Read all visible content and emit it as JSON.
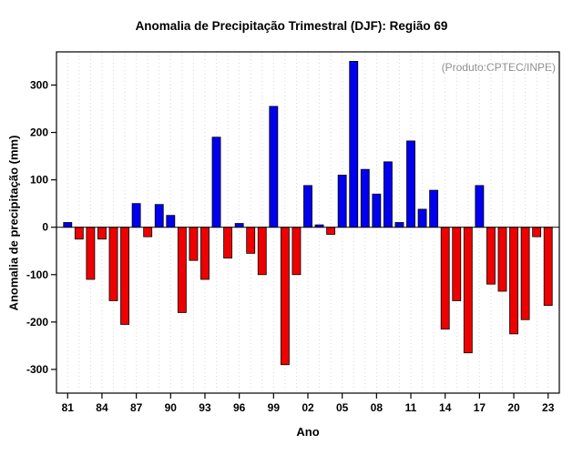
{
  "title": "Anomalia de Precipitação Trimestral (DJF): Região 69",
  "note": "(Produto:CPTEC/INPE)",
  "chart_data": {
    "type": "bar",
    "title": "Anomalia de Precipitação Trimestral (DJF): Região 69",
    "xlabel": "Ano",
    "ylabel": "Anomalia de precipitação (mm)",
    "x": [
      "81",
      "82",
      "83",
      "84",
      "85",
      "86",
      "87",
      "88",
      "89",
      "90",
      "91",
      "92",
      "93",
      "94",
      "95",
      "96",
      "97",
      "98",
      "99",
      "00",
      "01",
      "02",
      "03",
      "04",
      "05",
      "06",
      "07",
      "08",
      "09",
      "10",
      "11",
      "12",
      "13",
      "14",
      "15",
      "16",
      "17",
      "18",
      "19",
      "20",
      "21",
      "22",
      "23"
    ],
    "values": [
      10,
      -25,
      -110,
      -25,
      -155,
      -205,
      50,
      -20,
      48,
      25,
      -180,
      -70,
      -110,
      190,
      -65,
      8,
      -55,
      -100,
      255,
      -290,
      -100,
      88,
      5,
      -15,
      110,
      350,
      122,
      70,
      138,
      10,
      182,
      38,
      78,
      -215,
      -155,
      -265,
      88,
      -120,
      -135,
      -225,
      -195,
      -20,
      -165
    ],
    "x_tick_labels": [
      "81",
      "84",
      "87",
      "90",
      "93",
      "96",
      "99",
      "02",
      "05",
      "08",
      "11",
      "14",
      "17",
      "20",
      "23"
    ],
    "y_ticks": [
      -300,
      -200,
      -100,
      0,
      100,
      200,
      300
    ],
    "ylim": [
      -350,
      370
    ],
    "positive_color": "#0000ee",
    "negative_color": "#ee0000",
    "bar_outline_color": "#000000",
    "grid_color": "#d9d9d9",
    "grid": "dotted-vertical-per-year",
    "legend": "none"
  }
}
